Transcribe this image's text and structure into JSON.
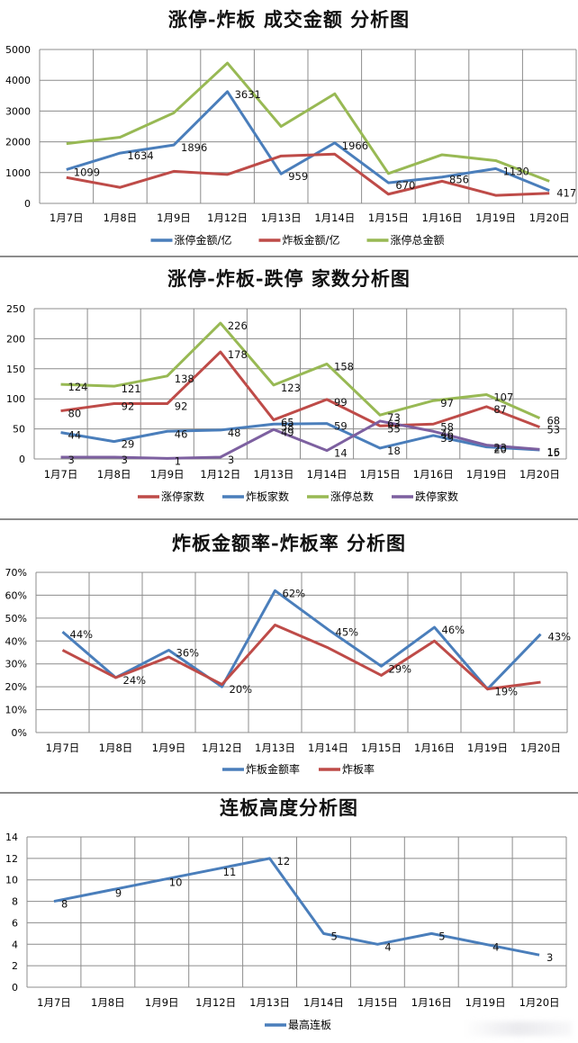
{
  "colors": {
    "blue": "#4a7ebb",
    "red": "#be4b48",
    "green": "#98b954",
    "purple": "#7d60a0",
    "grid": "#8c8c8c"
  },
  "chart_data": [
    {
      "id": "chart1",
      "type": "line",
      "title": "涨停-炸板 成交金额 分析图",
      "categories": [
        "1月7日",
        "1月8日",
        "1月9日",
        "1月12日",
        "1月13日",
        "1月14日",
        "1月15日",
        "1月16日",
        "1月19日",
        "1月20日"
      ],
      "ylim": [
        0,
        5000
      ],
      "yticks": [
        "0",
        "1000",
        "2000",
        "3000",
        "4000",
        "5000"
      ],
      "grid": true,
      "legend_position": "bottom",
      "series": [
        {
          "name": "涨停金额/亿",
          "color": "#4a7ebb",
          "values": [
            1099,
            1634,
            1896,
            3631,
            959,
            1966,
            670,
            856,
            1130,
            417
          ],
          "labels": [
            "1099",
            "1634",
            "1896",
            "3631",
            "959",
            "1966",
            "670",
            "856",
            "1130",
            "417"
          ]
        },
        {
          "name": "炸板金额/亿",
          "color": "#be4b48",
          "values": [
            840,
            520,
            1040,
            940,
            1540,
            1600,
            300,
            720,
            260,
            330
          ],
          "labels": null
        },
        {
          "name": "涨停总金额",
          "color": "#98b954",
          "values": [
            1940,
            2150,
            2940,
            4560,
            2500,
            3560,
            970,
            1580,
            1390,
            720
          ],
          "labels": null
        }
      ]
    },
    {
      "id": "chart2",
      "type": "line",
      "title": "涨停-炸板-跌停 家数分析图",
      "categories": [
        "1月7日",
        "1月8日",
        "1月9日",
        "1月12日",
        "1月13日",
        "1月14日",
        "1月15日",
        "1月16日",
        "1月19日",
        "1月20日"
      ],
      "ylim": [
        0,
        250
      ],
      "yticks": [
        "0",
        "50",
        "100",
        "150",
        "200",
        "250"
      ],
      "grid": true,
      "legend_position": "bottom",
      "series": [
        {
          "name": "涨停家数",
          "color": "#be4b48",
          "values": [
            80,
            92,
            92,
            178,
            65,
            99,
            55,
            58,
            87,
            53
          ],
          "labels": [
            "80",
            "92",
            "92",
            "178",
            "65",
            "99",
            "55",
            "58",
            "87",
            "53"
          ]
        },
        {
          "name": "炸板家数",
          "color": "#4a7ebb",
          "values": [
            44,
            29,
            46,
            48,
            58,
            59,
            18,
            39,
            20,
            15
          ],
          "labels": [
            "44",
            "29",
            "46",
            "48",
            "58",
            "59",
            "18",
            "39",
            "20",
            "15"
          ]
        },
        {
          "name": "涨停总数",
          "color": "#98b954",
          "values": [
            124,
            121,
            138,
            226,
            123,
            158,
            73,
            97,
            107,
            68
          ],
          "labels": [
            "124",
            "121",
            "138",
            "226",
            "123",
            "158",
            "73",
            "97",
            "107",
            "68"
          ]
        },
        {
          "name": "跌停家数",
          "color": "#7d60a0",
          "values": [
            3,
            3,
            1,
            3,
            49,
            14,
            63,
            46,
            23,
            16
          ],
          "labels": [
            "3",
            "3",
            "1",
            "3",
            "49",
            "14",
            "63",
            "46",
            "23",
            "16"
          ]
        }
      ]
    },
    {
      "id": "chart3",
      "type": "line",
      "title": "炸板金额率-炸板率 分析图",
      "categories": [
        "1月7日",
        "1月8日",
        "1月9日",
        "1月12日",
        "1月13日",
        "1月14日",
        "1月15日",
        "1月16日",
        "1月19日",
        "1月20日"
      ],
      "ylim": [
        0,
        70
      ],
      "yticks": [
        "0%",
        "10%",
        "20%",
        "30%",
        "40%",
        "50%",
        "60%",
        "70%"
      ],
      "grid": true,
      "legend_position": "bottom",
      "series": [
        {
          "name": "炸板金额率",
          "color": "#4a7ebb",
          "values": [
            44,
            24,
            36,
            20,
            62,
            45,
            29,
            46,
            19,
            43
          ],
          "labels": [
            "44%",
            "24%",
            "36%",
            "20%",
            "62%",
            "45%",
            "29%",
            "46%",
            "19%",
            "43%"
          ]
        },
        {
          "name": "炸板率",
          "color": "#be4b48",
          "values": [
            36,
            24,
            33,
            21,
            47,
            37,
            25,
            40,
            19,
            22
          ],
          "labels": null
        }
      ]
    },
    {
      "id": "chart4",
      "type": "line",
      "title": "连板高度分析图",
      "categories": [
        "1月7日",
        "1月8日",
        "1月9日",
        "1月12日",
        "1月13日",
        "1月14日",
        "1月15日",
        "1月16日",
        "1月19日",
        "1月20日"
      ],
      "ylim": [
        0,
        14
      ],
      "yticks": [
        "0",
        "2",
        "4",
        "6",
        "8",
        "10",
        "12",
        "14"
      ],
      "grid": true,
      "legend_position": "bottom",
      "series": [
        {
          "name": "最高连板",
          "color": "#4a7ebb",
          "values": [
            8,
            9,
            10,
            11,
            12,
            5,
            4,
            5,
            4,
            3
          ],
          "labels": [
            "8",
            "9",
            "10",
            "11",
            "12",
            "5",
            "4",
            "5",
            "4",
            "3"
          ]
        }
      ]
    }
  ],
  "titles": {
    "chart1": "涨停-炸板 成交金额 分析图",
    "chart2": "涨停-炸板-跌停 家数分析图",
    "chart3": "炸板金额率-炸板率 分析图",
    "chart4": "连板高度分析图"
  }
}
